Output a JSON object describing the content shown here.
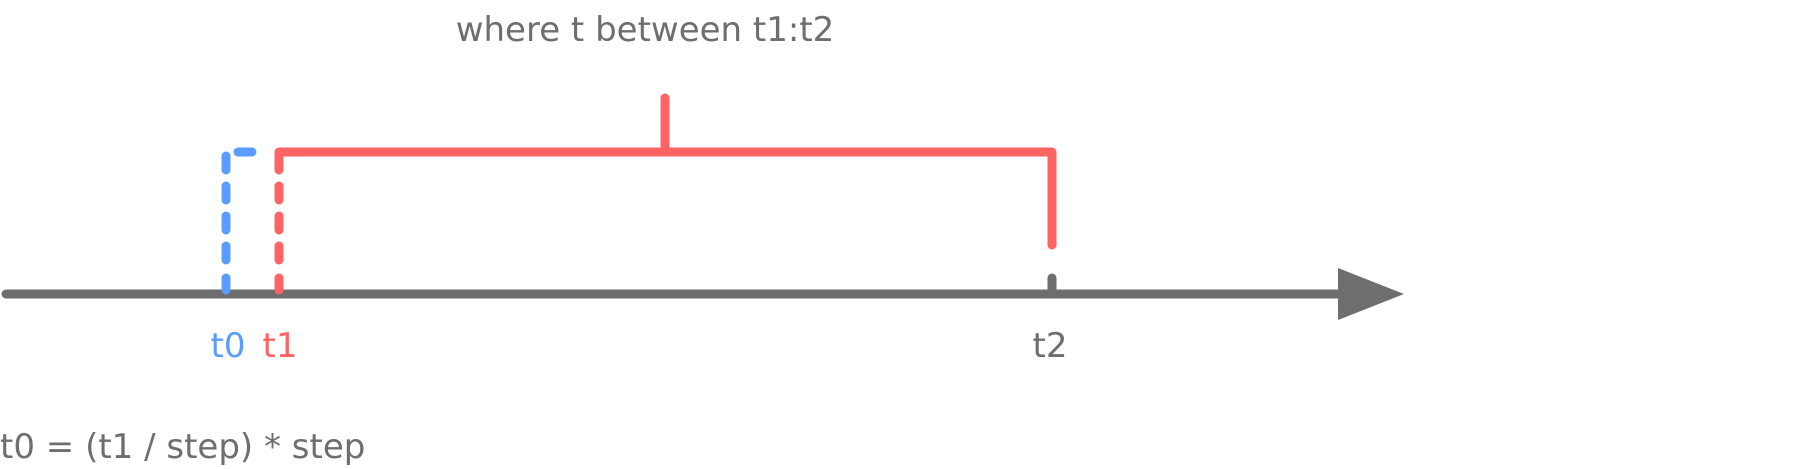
{
  "title": "where t between t1:t2",
  "formula": "t0 = (t1 / step) * step",
  "labels": {
    "t0": "t0",
    "t1": "t1",
    "t2": "t2"
  },
  "colors": {
    "axis": "#6e6e6e",
    "text": "#6e6e6e",
    "t0": "#5b9cff",
    "t1": "#ff6464"
  }
}
